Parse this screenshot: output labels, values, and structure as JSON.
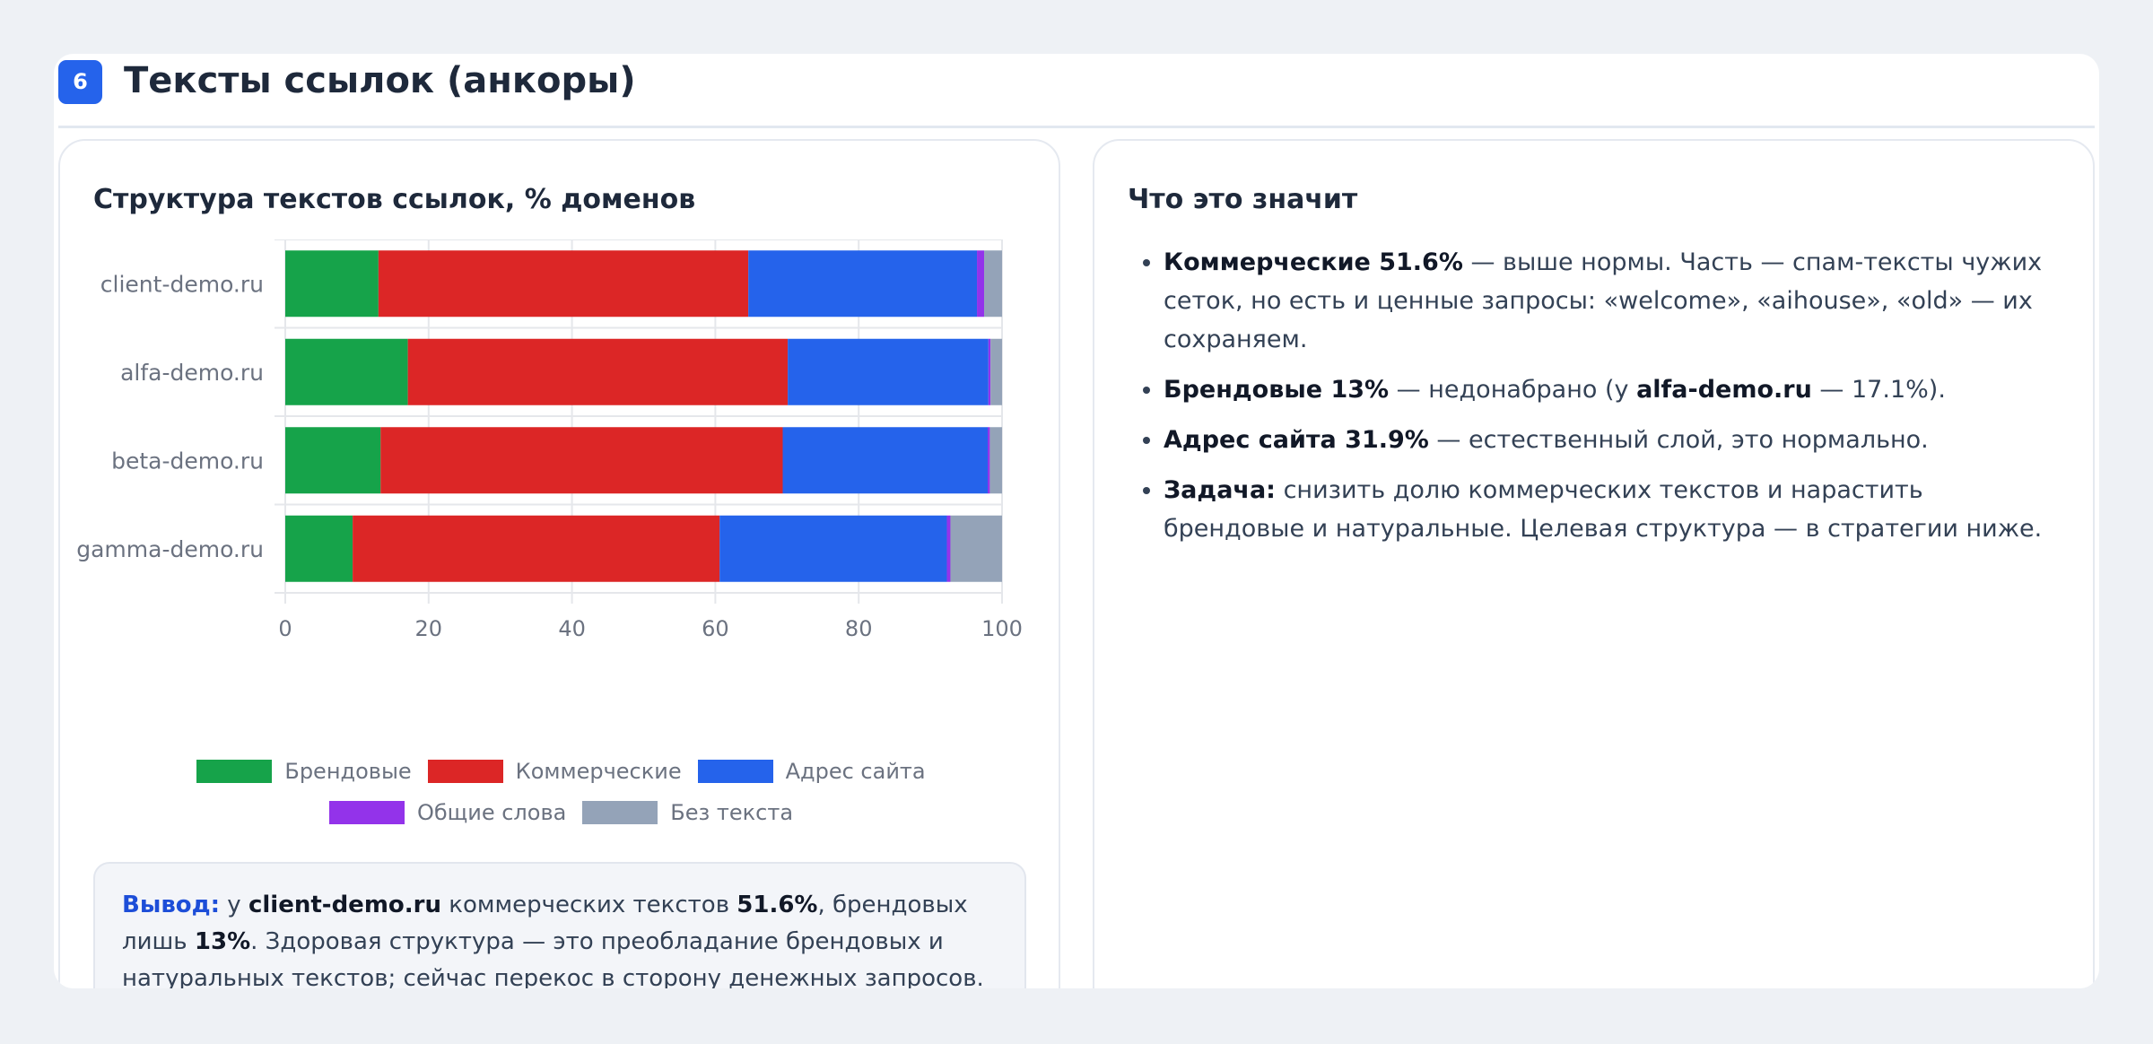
{
  "section": {
    "number": "6",
    "title": "Тексты ссылок (анкоры)"
  },
  "left_panel": {
    "title": "Структура текстов ссылок, % доменов",
    "conclusion": {
      "lead": "Вывод:",
      "t1": " у ",
      "site": "client-demo.ru",
      "t2": " коммерческих текстов ",
      "value1": "51.6%",
      "t3": ", брендовых лишь ",
      "value2": "13%",
      "t4": ". Здоровая структура — это преобладание брендовых и натуральных текстов; сейчас перекос в сторону денежных запросов."
    }
  },
  "right_panel": {
    "title": "Что это значит",
    "items": [
      {
        "strong": "Коммерческие 51.6%",
        "text": " — выше нормы. Часть — спам-тексты чужих сеток, но есть и ценные запросы: «welcome», «aihouse», «old» — их сохраняем."
      },
      {
        "strong": "Брендовые 13%",
        "text": " — недонабрано (у ",
        "strong2": "alfa-demo.ru",
        "text2": " — 17.1%)."
      },
      {
        "strong": "Адрес сайта 31.9%",
        "text": " — естественный слой, это нормально."
      },
      {
        "strong": "Задача:",
        "text": " снизить долю коммерческих текстов и нарастить брендовые и натуральные. Целевая структура — в стратегии ниже."
      }
    ]
  },
  "chart_data": {
    "type": "bar",
    "orientation": "horizontal",
    "stacked": true,
    "title": "Структура текстов ссылок, % доменов",
    "categories": [
      "client-demo.ru",
      "alfa-demo.ru",
      "beta-demo.ru",
      "gamma-demo.ru"
    ],
    "series": [
      {
        "name": "Брендовые",
        "color": "#16a34a",
        "values": [
          13.0,
          17.1,
          13.3,
          9.4
        ]
      },
      {
        "name": "Коммерческие",
        "color": "#dc2626",
        "values": [
          51.6,
          53.0,
          56.1,
          51.2
        ]
      },
      {
        "name": "Адрес сайта",
        "color": "#2563eb",
        "values": [
          31.9,
          28.0,
          28.6,
          31.7
        ]
      },
      {
        "name": "Общие слова",
        "color": "#9333ea",
        "values": [
          1.0,
          0.3,
          0.3,
          0.5
        ]
      },
      {
        "name": "Без текста",
        "color": "#94a3b8",
        "values": [
          2.5,
          1.6,
          1.7,
          7.2
        ]
      }
    ],
    "xlim": [
      0,
      100
    ],
    "xticks": [
      0,
      20,
      40,
      60,
      80,
      100
    ],
    "grid": true,
    "legend_position": "bottom"
  }
}
